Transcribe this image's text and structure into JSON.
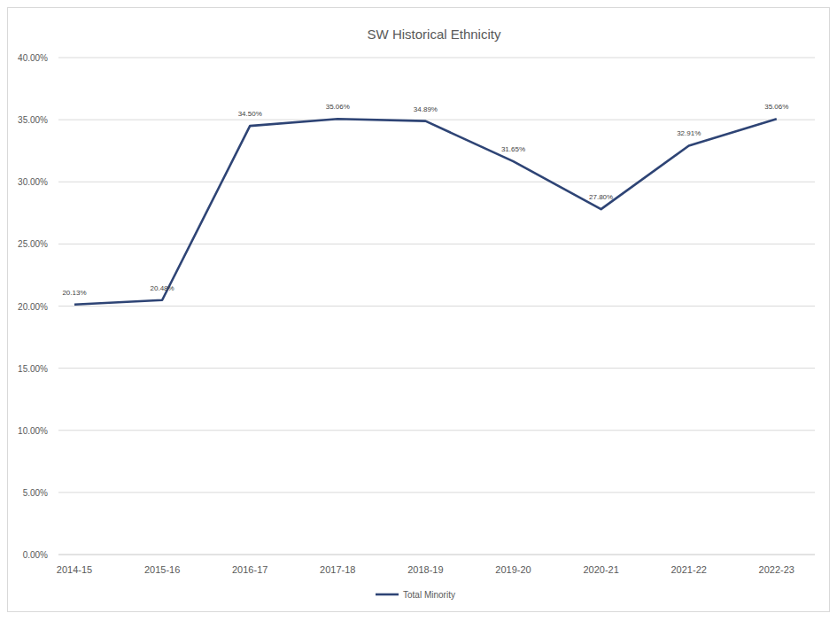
{
  "chart_data": {
    "type": "line",
    "title": "SW Historical Ethnicity",
    "categories": [
      "2014-15",
      "2015-16",
      "2016-17",
      "2017-18",
      "2018-19",
      "2019-20",
      "2020-21",
      "2021-22",
      "2022-23"
    ],
    "series": [
      {
        "name": "Total Minority",
        "color": "#2e4475",
        "values": [
          20.13,
          20.48,
          34.5,
          35.06,
          34.89,
          31.65,
          27.8,
          32.91,
          35.06
        ],
        "value_labels": [
          "20.13%",
          "20.48%",
          "34.50%",
          "35.06%",
          "34.89%",
          "31.65%",
          "27.80%",
          "32.91%",
          "35.06%"
        ]
      }
    ],
    "ylim": [
      0,
      40
    ],
    "yticks": [
      {
        "value": 0,
        "label": "0.00%"
      },
      {
        "value": 5,
        "label": "5.00%"
      },
      {
        "value": 10,
        "label": "10.00%"
      },
      {
        "value": 15,
        "label": "15.00%"
      },
      {
        "value": 20,
        "label": "20.00%"
      },
      {
        "value": 25,
        "label": "25.00%"
      },
      {
        "value": 30,
        "label": "30.00%"
      },
      {
        "value": 35,
        "label": "35.00%"
      },
      {
        "value": 40,
        "label": "40.00%"
      }
    ],
    "grid": true,
    "legend": "bottom",
    "data_labels": true
  }
}
